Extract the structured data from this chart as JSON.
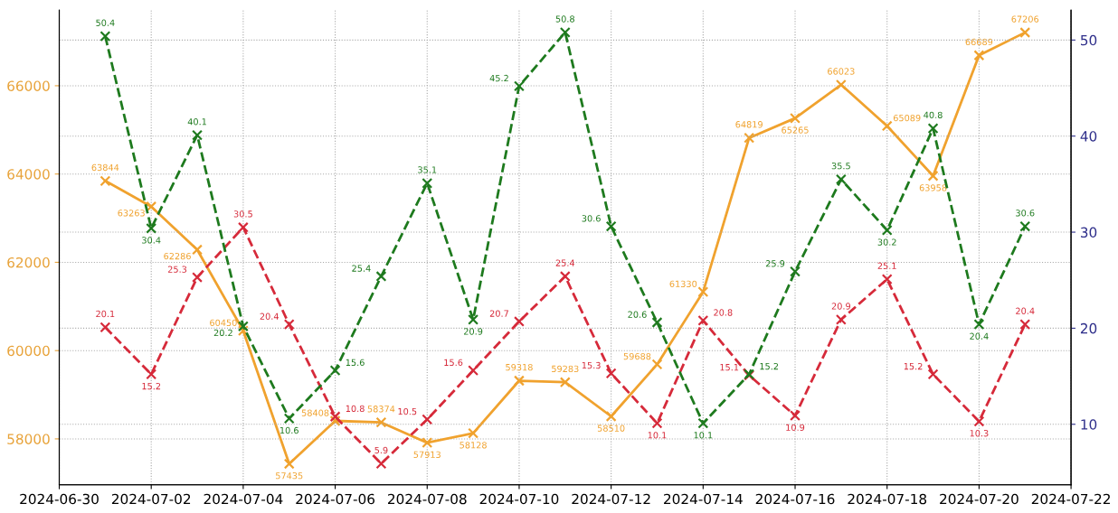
{
  "chart_data": {
    "type": "line",
    "x": [
      "2024-07-01",
      "2024-07-02",
      "2024-07-03",
      "2024-07-04",
      "2024-07-05",
      "2024-07-06",
      "2024-07-07",
      "2024-07-08",
      "2024-07-09",
      "2024-07-10",
      "2024-07-11",
      "2024-07-12",
      "2024-07-13",
      "2024-07-14",
      "2024-07-15",
      "2024-07-16",
      "2024-07-17",
      "2024-07-18",
      "2024-07-19",
      "2024-07-20",
      "2024-07-21"
    ],
    "series": [
      {
        "color": "#f0a22e",
        "line_style": "solid",
        "values": [
          63844,
          63263,
          62286,
          60450,
          57435,
          58408,
          58374,
          57913,
          58128,
          59318,
          59283,
          58510,
          59688,
          61330,
          64819,
          65265,
          66023,
          65089,
          63958,
          66689,
          67206
        ]
      },
      {
        "color": "#d62a3a",
        "line_style": "dashed",
        "axis": "y2",
        "values": [
          20.1,
          15.2,
          25.3,
          30.5,
          20.4,
          10.8,
          5.9,
          10.5,
          15.6,
          20.7,
          25.4,
          15.3,
          10.1,
          20.8,
          15.1,
          10.9,
          20.9,
          25.1,
          15.2,
          10.3,
          20.4
        ]
      },
      {
        "color": "#1e7a1e",
        "line_style": "dashed",
        "axis": "y2",
        "values": [
          50.4,
          30.4,
          40.1,
          20.2,
          10.6,
          15.6,
          25.4,
          35.1,
          20.9,
          45.2,
          50.8,
          30.6,
          20.6,
          10.1,
          15.2,
          25.9,
          35.5,
          30.2,
          40.8,
          20.4,
          30.6
        ]
      }
    ],
    "xlim": [
      "2024-06-30",
      "2024-07-22"
    ],
    "xticks": [
      "2024-06-30",
      "2024-07-02",
      "2024-07-04",
      "2024-07-06",
      "2024-07-08",
      "2024-07-10",
      "2024-07-12",
      "2024-07-14",
      "2024-07-16",
      "2024-07-18",
      "2024-07-20",
      "2024-07-22"
    ],
    "ylim": [
      56960,
      67710
    ],
    "yticks": [
      58000,
      60000,
      62000,
      64000,
      66000
    ],
    "y2lim": [
      3.7,
      53.1
    ],
    "y2ticks": [
      10,
      20,
      30,
      40,
      50
    ],
    "marker": "cross",
    "data_labels": true,
    "grid": true,
    "legend": false
  }
}
